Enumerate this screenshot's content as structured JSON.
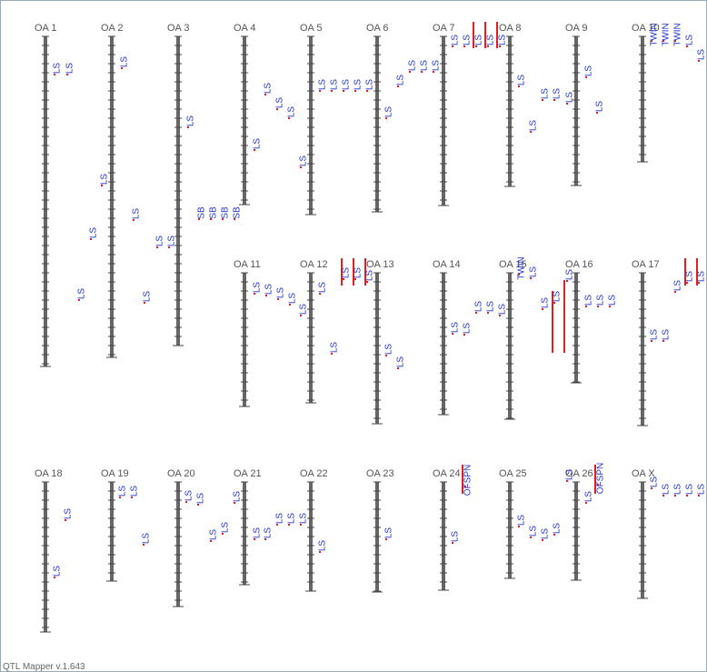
{
  "chromosomes": [
    {
      "name": "OA 1",
      "qtls": [
        "LS",
        "LS",
        "LS"
      ]
    },
    {
      "name": "OA 2",
      "qtls": [
        "LS",
        "LS",
        "LS",
        "LS",
        "LS"
      ]
    },
    {
      "name": "OA 3",
      "qtls": [
        "LS",
        "LS",
        "LS"
      ]
    },
    {
      "name": "OA 4",
      "qtls": [
        "LS",
        "LS",
        "LS",
        "LS",
        "SB",
        "SB",
        "SB",
        "SB"
      ]
    },
    {
      "name": "OA 5",
      "qtls": [
        "LS",
        "LS",
        "LS",
        "LS",
        "LS"
      ]
    },
    {
      "name": "OA 6",
      "qtls": [
        "LS",
        "LS",
        "LS",
        "LS",
        "LS",
        "LS"
      ]
    },
    {
      "name": "OA 7",
      "qtls": [
        "LS",
        "LS",
        "LS",
        "LS",
        "LS"
      ]
    },
    {
      "name": "OA 8",
      "qtls": [
        "LS",
        "LS",
        "LS",
        "LS"
      ]
    },
    {
      "name": "OA 9",
      "qtls": [
        "LS",
        "LS",
        "LS"
      ]
    },
    {
      "name": "OA 10",
      "qtls": [
        "TWIN",
        "TWIN",
        "TWIN",
        "LS",
        "LS"
      ]
    },
    {
      "name": "OA 11",
      "qtls": [
        "LS",
        "LS",
        "LS",
        "LS"
      ]
    },
    {
      "name": "OA 12",
      "qtls": [
        "LS",
        "LS",
        "LS",
        "LS",
        "LS",
        "LS"
      ]
    },
    {
      "name": "OA 13",
      "qtls": [
        "LS",
        "LS"
      ]
    },
    {
      "name": "OA 14",
      "qtls": [
        "LS",
        "LS",
        "LS",
        "LS",
        "LS"
      ]
    },
    {
      "name": "OA 15",
      "qtls": [
        "TWIN",
        "LS",
        "LS",
        "LS",
        "LS"
      ]
    },
    {
      "name": "OA 16",
      "qtls": [
        "LS",
        "LS",
        "LS"
      ]
    },
    {
      "name": "OA 17",
      "qtls": [
        "LS",
        "LS",
        "LS",
        "LS",
        "LS"
      ]
    },
    {
      "name": "OA 18",
      "qtls": [
        "LS",
        "LS"
      ]
    },
    {
      "name": "OA 19",
      "qtls": [
        "LS",
        "LS",
        "LS"
      ]
    },
    {
      "name": "OA 20",
      "qtls": [
        "LS",
        "LS",
        "LS",
        "LS"
      ]
    },
    {
      "name": "OA 21",
      "qtls": [
        "LS",
        "LS",
        "LS",
        "LS",
        "LS",
        "LS"
      ]
    },
    {
      "name": "OA 22",
      "qtls": [
        "LS"
      ]
    },
    {
      "name": "OA 23",
      "qtls": [
        "LS"
      ]
    },
    {
      "name": "OA 24",
      "qtls": [
        "OFSPN",
        "LS"
      ]
    },
    {
      "name": "OA 25",
      "qtls": [
        "LS",
        "LS",
        "LS",
        "LS"
      ]
    },
    {
      "name": "OA 26",
      "qtls": [
        "LS",
        "LS",
        "OFSPN"
      ]
    },
    {
      "name": "OA X",
      "qtls": [
        "LS",
        "LS",
        "LS",
        "LS",
        "LS"
      ]
    }
  ],
  "footer": "QTL Mapper v.1.643"
}
